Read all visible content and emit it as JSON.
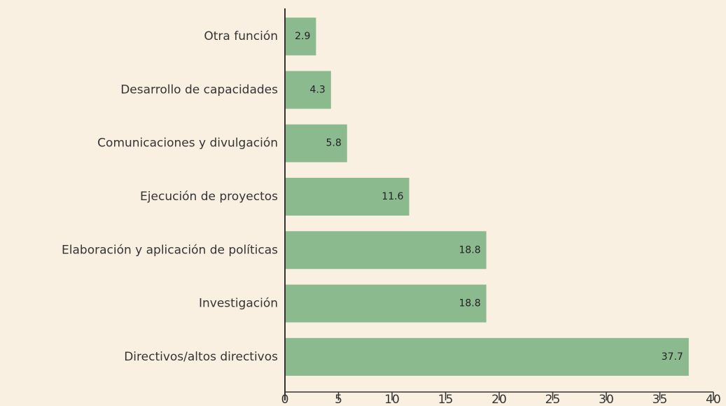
{
  "chart_data": {
    "type": "hbar",
    "categories": [
      "Otra función",
      "Desarrollo de capacidades",
      "Comunicaciones y divulgación",
      "Ejecución de proyectos",
      "Elaboración y aplicación de políticas",
      "Investigación",
      "Directivos/altos directivos"
    ],
    "values": [
      2.9,
      4.3,
      5.8,
      11.6,
      18.8,
      18.8,
      37.7
    ],
    "color": "#8cba8f",
    "xlim": [
      0,
      40
    ],
    "xticks": [
      0,
      5,
      10,
      15,
      20,
      25,
      30,
      35,
      40
    ],
    "grid": false
  }
}
